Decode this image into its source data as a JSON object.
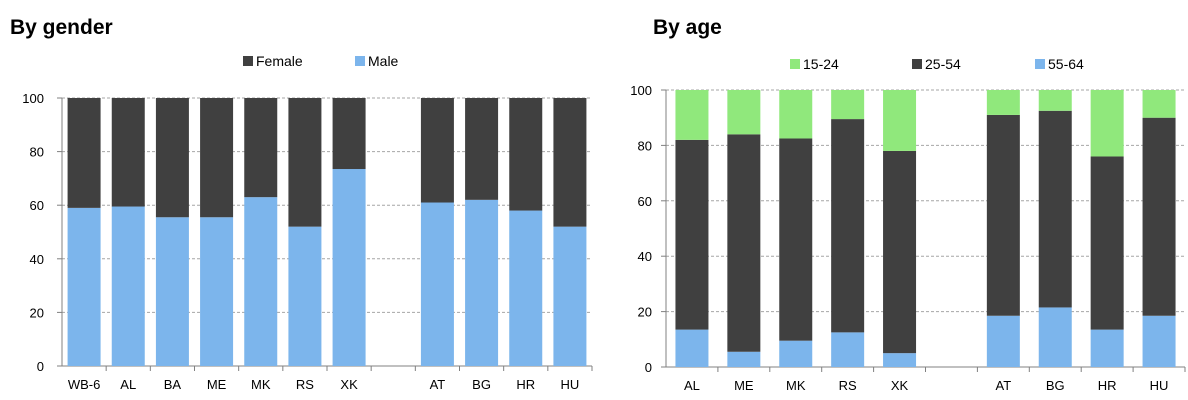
{
  "chart_data": [
    {
      "type": "bar",
      "stacked": true,
      "title": "By gender",
      "categories": [
        "WB-6",
        "AL",
        "BA",
        "ME",
        "MK",
        "RS",
        "XK",
        "",
        "AT",
        "BG",
        "HR",
        "HU"
      ],
      "series": [
        {
          "name": "Male",
          "color": "#7cb5ec",
          "values": [
            59,
            59.5,
            55.5,
            55.5,
            63,
            52,
            73.5,
            null,
            61,
            62,
            58,
            52
          ]
        },
        {
          "name": "Female",
          "color": "#404040",
          "values": [
            41,
            40.5,
            44.5,
            44.5,
            37,
            48,
            26.5,
            null,
            39,
            38,
            42,
            48
          ]
        }
      ],
      "legend": {
        "placement": "top-center",
        "order": [
          "Female",
          "Male"
        ]
      },
      "ylim": [
        0,
        100
      ],
      "yticks": [
        0,
        20,
        40,
        60,
        80,
        100
      ],
      "grid": "horizontal-dashed"
    },
    {
      "type": "bar",
      "stacked": true,
      "title": "By age",
      "categories": [
        "AL",
        "ME",
        "MK",
        "RS",
        "XK",
        "",
        "AT",
        "BG",
        "HR",
        "HU"
      ],
      "series": [
        {
          "name": "55-64",
          "color": "#7cb5ec",
          "values": [
            13.5,
            5.5,
            9.5,
            12.5,
            5,
            null,
            18.5,
            21.5,
            13.5,
            18.5
          ]
        },
        {
          "name": "25-54",
          "color": "#404040",
          "values": [
            68.5,
            78.5,
            73,
            77,
            73,
            null,
            72.5,
            71,
            62.5,
            71.5
          ]
        },
        {
          "name": "15-24",
          "color": "#90e87c",
          "values": [
            18,
            16,
            17.5,
            10.5,
            22,
            null,
            9,
            7.5,
            24,
            10
          ]
        }
      ],
      "legend": {
        "placement": "top-center",
        "order": [
          "15-24",
          "25-54",
          "55-64"
        ]
      },
      "ylim": [
        0,
        100
      ],
      "yticks": [
        0,
        20,
        40,
        60,
        80,
        100
      ],
      "grid": "horizontal-dashed"
    }
  ]
}
